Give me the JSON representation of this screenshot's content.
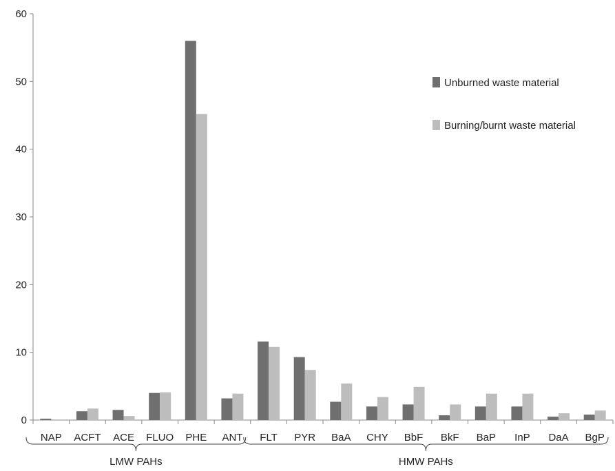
{
  "chart_data": {
    "type": "bar",
    "title": "",
    "xlabel": "",
    "ylabel": "",
    "ylim": [
      0,
      60
    ],
    "yticks": [
      0,
      10,
      20,
      30,
      40,
      50,
      60
    ],
    "grid": false,
    "legend_position": "top-right",
    "categories": [
      "NAP",
      "ACFT",
      "ACE",
      "FLUO",
      "PHE",
      "ANT",
      "FLT",
      "PYR",
      "BaA",
      "CHY",
      "BbF",
      "BkF",
      "BaP",
      "InP",
      "DaA",
      "BgP"
    ],
    "series": [
      {
        "name": "Unburned waste material",
        "color": "#6f6f6f",
        "values": [
          0.2,
          1.3,
          1.5,
          4.0,
          56.0,
          3.2,
          11.6,
          9.3,
          2.7,
          2.0,
          2.3,
          0.7,
          2.0,
          2.0,
          0.5,
          0.8
        ]
      },
      {
        "name": "Burning/burnt waste material",
        "color": "#bdbdbd",
        "values": [
          0.0,
          1.7,
          0.6,
          4.1,
          45.2,
          3.9,
          10.8,
          7.4,
          5.4,
          3.4,
          4.9,
          2.3,
          3.9,
          3.9,
          1.0,
          1.4
        ]
      }
    ],
    "groups": [
      {
        "label": "LMW PAHs",
        "start": 0,
        "end": 5
      },
      {
        "label": "HMW PAHs",
        "start": 6,
        "end": 15
      }
    ]
  }
}
